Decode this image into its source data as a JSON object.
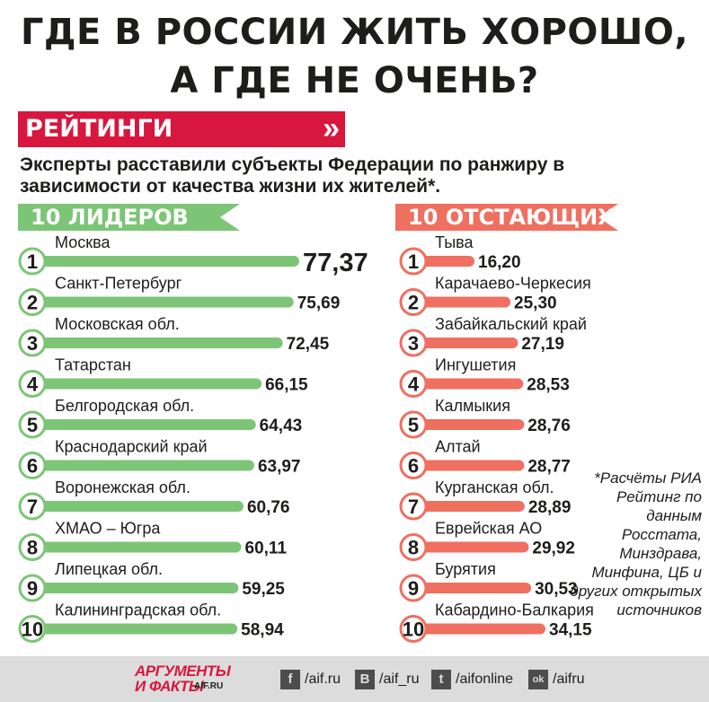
{
  "title_line1": "ГДЕ В РОССИИ ЖИТЬ ХОРОШО,",
  "title_line2": "А ГДЕ НЕ ОЧЕНЬ?",
  "banner": {
    "label": "РЕЙТИНГИ",
    "arrow": "»"
  },
  "subtitle": "Эксперты расставили субъекты Федерации по ранжиру в зависимости от качества жизни их жителей*.",
  "note": "*Расчёты РИА Рейтинг по данным Росстата, Минздрава, Минфина, ЦБ и других открытых источников",
  "colors": {
    "leaders": "#7cc576",
    "laggards": "#ef6f60",
    "accent": "#d7173d"
  },
  "chart_data": [
    {
      "type": "bar",
      "title": "10 ЛИДЕРОВ",
      "ranks": [
        "1",
        "2",
        "3",
        "4",
        "5",
        "6",
        "7",
        "8",
        "9",
        "10"
      ],
      "categories": [
        "Москва",
        "Санкт-Петербург",
        "Московская обл.",
        "Татарстан",
        "Белгородская обл.",
        "Краснодарский край",
        "Воронежская обл.",
        "ХМАО – Югра",
        "Липецкая обл.",
        "Калининградская обл."
      ],
      "values": [
        77.37,
        75.69,
        72.45,
        66.15,
        64.43,
        63.97,
        60.76,
        60.11,
        59.25,
        58.94
      ],
      "labels": [
        "77,37",
        "75,69",
        "72,45",
        "66,15",
        "64,43",
        "63,97",
        "60,76",
        "60,11",
        "59,25",
        "58,94"
      ]
    },
    {
      "type": "bar",
      "title": "10 ОТСТАЮЩИХ",
      "ranks": [
        "1",
        "2",
        "3",
        "4",
        "5",
        "6",
        "7",
        "8",
        "9",
        "10"
      ],
      "categories": [
        "Тыва",
        "Карачаево-Черкесия",
        "Забайкальский край",
        "Ингушетия",
        "Калмыкия",
        "Алтай",
        "Курганская обл.",
        "Еврейская АО",
        "Бурятия",
        "Кабардино-Балкария"
      ],
      "values": [
        16.2,
        25.3,
        27.19,
        28.53,
        28.76,
        28.77,
        28.89,
        29.92,
        30.53,
        34.15
      ],
      "labels": [
        "16,20",
        "25,30",
        "27,19",
        "28,53",
        "28,76",
        "28,77",
        "28,89",
        "29,92",
        "30,53",
        "34,15"
      ]
    }
  ],
  "footer": {
    "logo_line1": "АРГУМЕНТЫ",
    "logo_line2": "И ФАКТЫ",
    "logo_site": "AIF.RU",
    "social": [
      {
        "icon": "facebook-icon",
        "glyph": "f",
        "text": "/aif.ru"
      },
      {
        "icon": "vk-icon",
        "glyph": "В",
        "text": "/aif_ru"
      },
      {
        "icon": "twitter-icon",
        "glyph": "t",
        "text": "/aifonline"
      },
      {
        "icon": "odnoklassniki-icon",
        "glyph": "ok",
        "text": "/aifru"
      }
    ]
  }
}
